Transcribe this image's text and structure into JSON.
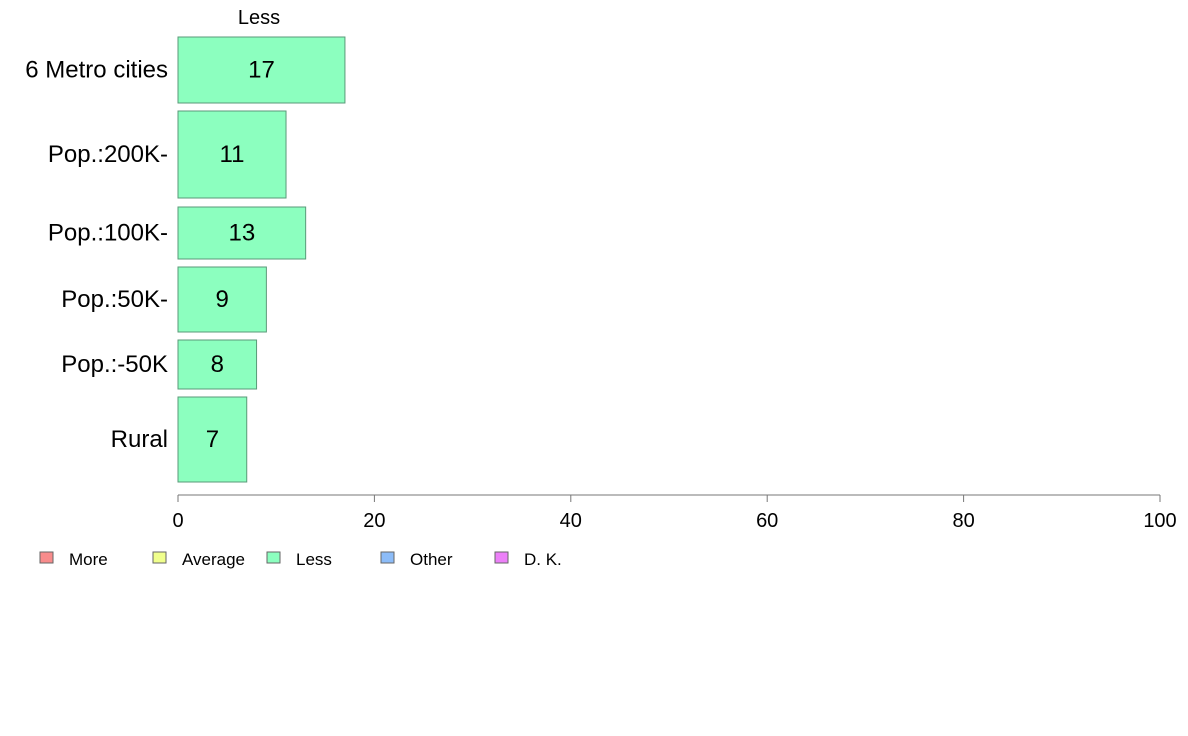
{
  "chart_data": {
    "type": "bar",
    "orientation": "horizontal",
    "column_header": "Less",
    "categories": [
      "6 Metro cities",
      "Pop.:200K-",
      "Pop.:100K-",
      "Pop.:50K-",
      "Pop.:-50K",
      "Rural"
    ],
    "series": [
      {
        "name": "Less",
        "values": [
          17,
          11,
          13,
          9,
          8,
          7
        ],
        "color": "#8cffbf"
      }
    ],
    "xlim": [
      0,
      100
    ],
    "xticks": [
      0,
      20,
      40,
      60,
      80,
      100
    ],
    "xtick_labels": [
      "0",
      "20",
      "40",
      "60",
      "80",
      "100"
    ],
    "grid": false,
    "legend": {
      "position": "bottom-left",
      "items": [
        {
          "label": "More",
          "color": "#f88c8c"
        },
        {
          "label": "Average",
          "color": "#f0ff8c"
        },
        {
          "label": "Less",
          "color": "#8cffbf"
        },
        {
          "label": "Other",
          "color": "#8cbcf8"
        },
        {
          "label": "D. K.",
          "color": "#ec80f8"
        }
      ]
    }
  }
}
